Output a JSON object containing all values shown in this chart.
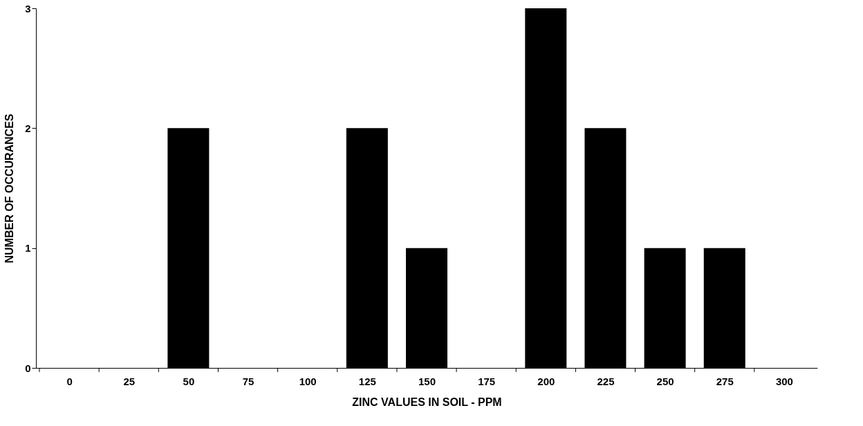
{
  "chart_data": {
    "type": "bar",
    "xlabel": "ZINC VALUES IN SOIL - PPM",
    "ylabel": "NUMBER OF OCCURANCES",
    "categories": [
      "0",
      "25",
      "50",
      "75",
      "100",
      "125",
      "150",
      "175",
      "200",
      "225",
      "250",
      "275",
      "300"
    ],
    "values": [
      0,
      0,
      2,
      0,
      0,
      2,
      1,
      0,
      3,
      2,
      1,
      1,
      0
    ],
    "color": "#000000",
    "ylim": [
      0,
      3
    ],
    "yticks": [
      0,
      1,
      2,
      3
    ],
    "grid": false
  }
}
